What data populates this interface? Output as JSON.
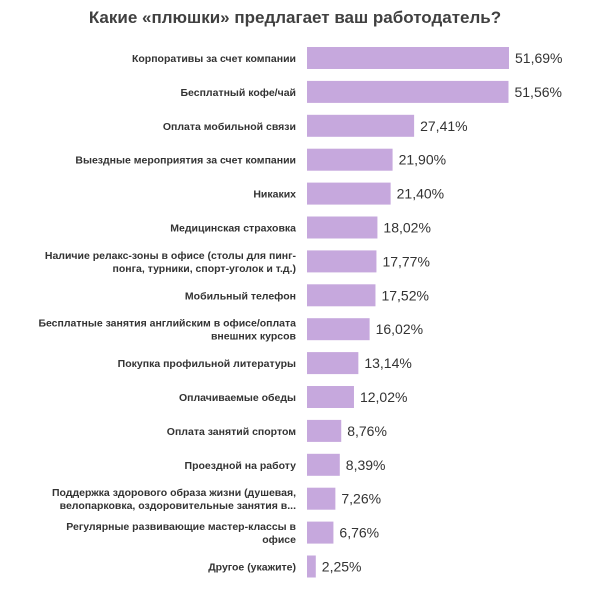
{
  "chart_data": {
    "type": "bar",
    "orientation": "horizontal",
    "title": "Какие «плюшки» предлагает ваш работодатель?",
    "xlabel": "",
    "ylabel": "",
    "grid": false,
    "bar_color": "#c6a8dd",
    "categories": [
      [
        "Корпоративы за счет компании"
      ],
      [
        "Бесплатный кофе/чай"
      ],
      [
        "Оплата мобильной связи"
      ],
      [
        "Выездные мероприятия за счет компании"
      ],
      [
        "Никаких"
      ],
      [
        "Медицинская страховка"
      ],
      [
        "Наличие релакс-зоны в офисе (столы для пинг-",
        "понга, турники, спорт-уголок и т.д.)"
      ],
      [
        "Мобильный телефон"
      ],
      [
        "Бесплатные занятия английским в офисе/оплата",
        "внешних курсов"
      ],
      [
        "Покупка профильной литературы"
      ],
      [
        "Оплачиваемые обеды"
      ],
      [
        "Оплата занятий спортом"
      ],
      [
        "Проездной на работу"
      ],
      [
        "Поддержка здорового образа жизни (душевая,",
        "велопарковка, оздоровительные занятия в..."
      ],
      [
        "Регулярные развивающие мастер-классы в",
        "офисе"
      ],
      [
        "Другое (укажите)"
      ]
    ],
    "values": [
      51.69,
      51.56,
      27.41,
      21.9,
      21.4,
      18.02,
      17.77,
      17.52,
      16.02,
      13.14,
      12.02,
      8.76,
      8.39,
      7.26,
      6.76,
      2.25
    ],
    "value_labels": [
      "51,69%",
      "51,56%",
      "27,41%",
      "21,90%",
      "21,40%",
      "18,02%",
      "17,77%",
      "17,52%",
      "16,02%",
      "13,14%",
      "12,02%",
      "8,76%",
      "8,39%",
      "7,26%",
      "6,76%",
      "2,25%"
    ],
    "xlim": [
      0,
      51.69
    ]
  }
}
